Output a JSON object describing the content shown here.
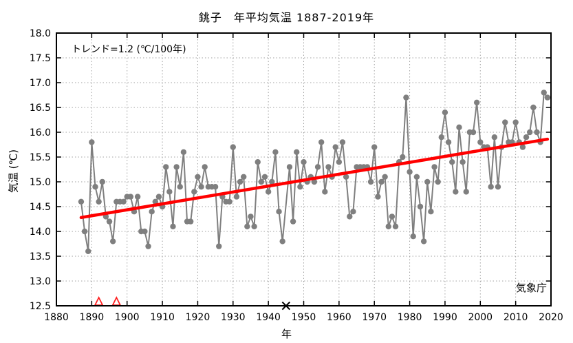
{
  "texts": {
    "title": "銚子　年平均気温 1887-2019年",
    "trend_label": "トレンド=1.2 (℃/100年)",
    "source_label": "気象庁",
    "xlabel": "年",
    "ylabel": "気温 (℃)"
  },
  "colors": {
    "series": "#7f7f7f",
    "trend": "#ff0000",
    "grid": "#a0a0a0",
    "frame": "#000000",
    "relocation_marker": "#ff2020",
    "missing_marker": "#000000"
  },
  "chart_data": {
    "type": "line",
    "title": "銚子　年平均気温 1887-2019年",
    "xlabel": "年",
    "ylabel": "気温 (℃)",
    "xlim": [
      1880,
      2020
    ],
    "ylim": [
      12.5,
      18.0
    ],
    "x_ticks": [
      1880,
      1890,
      1900,
      1910,
      1920,
      1930,
      1940,
      1950,
      1960,
      1970,
      1980,
      1990,
      2000,
      2010,
      2020
    ],
    "y_ticks": [
      12.5,
      13.0,
      13.5,
      14.0,
      14.5,
      15.0,
      15.5,
      16.0,
      16.5,
      17.0,
      17.5,
      18.0
    ],
    "grid": "dotted",
    "legend_position": "none",
    "series": [
      {
        "name": "年平均気温",
        "marker": "circle",
        "start_year": 1887,
        "end_year": 2019,
        "values": [
          14.6,
          14.0,
          13.6,
          15.8,
          14.9,
          14.6,
          15.0,
          14.3,
          14.2,
          13.8,
          14.6,
          14.6,
          14.6,
          14.7,
          14.7,
          14.4,
          14.7,
          14.0,
          14.0,
          13.7,
          14.4,
          14.6,
          14.7,
          14.5,
          15.3,
          14.8,
          14.1,
          15.3,
          14.9,
          15.6,
          14.2,
          14.2,
          14.8,
          15.1,
          14.9,
          15.3,
          14.9,
          14.9,
          14.9,
          13.7,
          14.7,
          14.6,
          14.6,
          15.7,
          14.7,
          15.0,
          15.1,
          14.1,
          14.3,
          14.1,
          15.4,
          15.0,
          15.1,
          14.8,
          15.0,
          15.6,
          14.4,
          13.8,
          null,
          15.3,
          14.2,
          15.6,
          14.9,
          15.4,
          15.0,
          15.1,
          15.0,
          15.3,
          15.8,
          14.8,
          15.3,
          15.1,
          15.7,
          15.4,
          15.8,
          15.1,
          14.3,
          14.4,
          15.3,
          15.3,
          15.3,
          15.3,
          15.0,
          15.7,
          14.7,
          15.0,
          15.1,
          14.1,
          14.3,
          14.1,
          15.4,
          15.5,
          16.7,
          15.2,
          13.9,
          15.1,
          14.5,
          13.8,
          15.0,
          14.4,
          15.3,
          15.0,
          15.9,
          16.4,
          15.8,
          15.4,
          14.8,
          16.1,
          15.4,
          14.8,
          16.0,
          16.0,
          16.6,
          15.8,
          15.7,
          15.7,
          14.9,
          15.9,
          14.9,
          15.7,
          16.2,
          15.8,
          15.8,
          16.2,
          15.8,
          15.7,
          15.9,
          16.0,
          16.5,
          16.0,
          15.8,
          16.8,
          16.7
        ]
      }
    ],
    "missing_years": [
      1945
    ],
    "trend_line": {
      "label": "トレンド=1.2 (℃/100年)",
      "rate_c_per_100yr": 1.2,
      "start": {
        "x": 1887,
        "y": 14.28
      },
      "end": {
        "x": 2019,
        "y": 15.86
      }
    },
    "event_markers": {
      "relocation_triangle_years": [
        1892,
        1897
      ],
      "missing_data_x_years": [
        1945
      ]
    },
    "source_label": "気象庁"
  }
}
